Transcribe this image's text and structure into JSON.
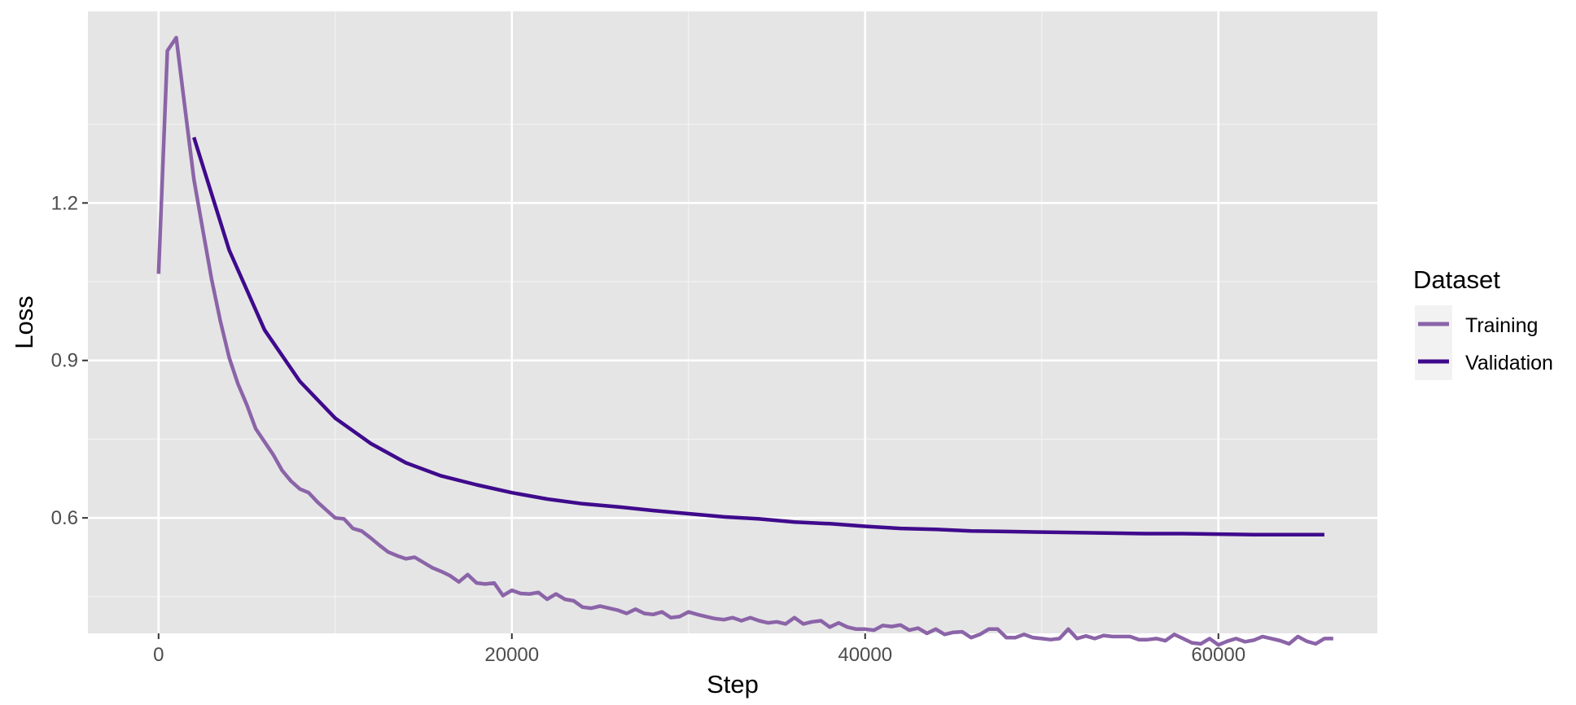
{
  "chart_data": {
    "type": "line",
    "title": "",
    "xlabel": "Step",
    "ylabel": "Loss",
    "xlim": [
      -4000,
      69000
    ],
    "ylim": [
      0.38,
      1.565
    ],
    "x_ticks": [
      0,
      20000,
      40000,
      60000
    ],
    "x_tick_labels": [
      "0",
      "20000",
      "40000",
      "60000"
    ],
    "y_ticks": [
      0.6,
      0.9,
      1.2
    ],
    "y_tick_labels": [
      "0.6",
      "0.9",
      "1.2"
    ],
    "grid": true,
    "legend": {
      "title": "Dataset",
      "position": "right"
    },
    "series": [
      {
        "name": "Training",
        "color": "#8B64A8",
        "points": [
          [
            0,
            1.065
          ],
          [
            500,
            1.49
          ],
          [
            1000,
            1.515
          ],
          [
            1500,
            1.38
          ],
          [
            2000,
            1.245
          ],
          [
            2500,
            1.15
          ],
          [
            3000,
            1.055
          ],
          [
            3500,
            0.975
          ],
          [
            4000,
            0.905
          ],
          [
            4500,
            0.855
          ],
          [
            5000,
            0.815
          ],
          [
            5500,
            0.77
          ],
          [
            6000,
            0.745
          ],
          [
            6500,
            0.72
          ],
          [
            7000,
            0.69
          ],
          [
            7500,
            0.67
          ],
          [
            8000,
            0.655
          ],
          [
            8500,
            0.648
          ],
          [
            9000,
            0.63
          ],
          [
            9500,
            0.615
          ],
          [
            10000,
            0.6
          ],
          [
            10500,
            0.598
          ],
          [
            11000,
            0.58
          ],
          [
            11500,
            0.575
          ],
          [
            12000,
            0.562
          ],
          [
            12500,
            0.548
          ],
          [
            13000,
            0.535
          ],
          [
            13500,
            0.528
          ],
          [
            14000,
            0.522
          ],
          [
            14500,
            0.525
          ],
          [
            15000,
            0.515
          ],
          [
            15500,
            0.505
          ],
          [
            16000,
            0.498
          ],
          [
            16500,
            0.49
          ],
          [
            17000,
            0.478
          ],
          [
            17500,
            0.492
          ],
          [
            18000,
            0.476
          ],
          [
            18500,
            0.474
          ],
          [
            19000,
            0.476
          ],
          [
            19500,
            0.452
          ],
          [
            20000,
            0.462
          ],
          [
            20500,
            0.456
          ],
          [
            21000,
            0.455
          ],
          [
            21500,
            0.458
          ],
          [
            22000,
            0.445
          ],
          [
            22500,
            0.455
          ],
          [
            23000,
            0.445
          ],
          [
            23500,
            0.442
          ],
          [
            24000,
            0.43
          ],
          [
            24500,
            0.428
          ],
          [
            25000,
            0.432
          ],
          [
            25500,
            0.428
          ],
          [
            26000,
            0.424
          ],
          [
            26500,
            0.418
          ],
          [
            27000,
            0.426
          ],
          [
            27500,
            0.418
          ],
          [
            28000,
            0.416
          ],
          [
            28500,
            0.421
          ],
          [
            29000,
            0.41
          ],
          [
            29500,
            0.412
          ],
          [
            30000,
            0.421
          ],
          [
            30500,
            0.416
          ],
          [
            31000,
            0.412
          ],
          [
            31500,
            0.408
          ],
          [
            32000,
            0.406
          ],
          [
            32500,
            0.41
          ],
          [
            33000,
            0.404
          ],
          [
            33500,
            0.41
          ],
          [
            34000,
            0.404
          ],
          [
            34500,
            0.4
          ],
          [
            35000,
            0.402
          ],
          [
            35500,
            0.398
          ],
          [
            36000,
            0.41
          ],
          [
            36500,
            0.398
          ],
          [
            37000,
            0.402
          ],
          [
            37500,
            0.404
          ],
          [
            38000,
            0.392
          ],
          [
            38500,
            0.4
          ],
          [
            39000,
            0.392
          ],
          [
            39500,
            0.388
          ],
          [
            40000,
            0.388
          ],
          [
            40500,
            0.386
          ],
          [
            41000,
            0.395
          ],
          [
            41500,
            0.393
          ],
          [
            42000,
            0.396
          ],
          [
            42500,
            0.386
          ],
          [
            43000,
            0.39
          ],
          [
            43500,
            0.38
          ],
          [
            44000,
            0.388
          ],
          [
            44500,
            0.378
          ],
          [
            45000,
            0.382
          ],
          [
            45500,
            0.383
          ],
          [
            46000,
            0.372
          ],
          [
            46500,
            0.378
          ],
          [
            47000,
            0.388
          ],
          [
            47500,
            0.388
          ],
          [
            48000,
            0.372
          ],
          [
            48500,
            0.372
          ],
          [
            49000,
            0.378
          ],
          [
            49500,
            0.372
          ],
          [
            50000,
            0.37
          ],
          [
            50500,
            0.368
          ],
          [
            51000,
            0.37
          ],
          [
            51500,
            0.388
          ],
          [
            52000,
            0.37
          ],
          [
            52500,
            0.375
          ],
          [
            53000,
            0.37
          ],
          [
            53500,
            0.376
          ],
          [
            54000,
            0.374
          ],
          [
            54500,
            0.374
          ],
          [
            55000,
            0.374
          ],
          [
            55500,
            0.368
          ],
          [
            56000,
            0.368
          ],
          [
            56500,
            0.37
          ],
          [
            57000,
            0.366
          ],
          [
            57500,
            0.378
          ],
          [
            58000,
            0.37
          ],
          [
            58500,
            0.362
          ],
          [
            59000,
            0.36
          ],
          [
            59500,
            0.37
          ],
          [
            60000,
            0.358
          ],
          [
            60500,
            0.365
          ],
          [
            61000,
            0.37
          ],
          [
            61500,
            0.364
          ],
          [
            62000,
            0.367
          ],
          [
            62500,
            0.374
          ],
          [
            63000,
            0.37
          ],
          [
            63500,
            0.366
          ],
          [
            64000,
            0.36
          ],
          [
            64500,
            0.374
          ],
          [
            65000,
            0.365
          ],
          [
            65500,
            0.36
          ],
          [
            66000,
            0.37
          ],
          [
            66500,
            0.37
          ]
        ]
      },
      {
        "name": "Validation",
        "color": "#3F0A8C",
        "points": [
          [
            2000,
            1.325
          ],
          [
            4000,
            1.11
          ],
          [
            6000,
            0.958
          ],
          [
            8000,
            0.86
          ],
          [
            10000,
            0.79
          ],
          [
            12000,
            0.742
          ],
          [
            14000,
            0.705
          ],
          [
            16000,
            0.68
          ],
          [
            18000,
            0.663
          ],
          [
            20000,
            0.648
          ],
          [
            22000,
            0.636
          ],
          [
            24000,
            0.627
          ],
          [
            26000,
            0.621
          ],
          [
            28000,
            0.614
          ],
          [
            30000,
            0.608
          ],
          [
            32000,
            0.602
          ],
          [
            34000,
            0.598
          ],
          [
            36000,
            0.592
          ],
          [
            38000,
            0.589
          ],
          [
            40000,
            0.584
          ],
          [
            42000,
            0.58
          ],
          [
            44000,
            0.578
          ],
          [
            46000,
            0.575
          ],
          [
            48000,
            0.574
          ],
          [
            50000,
            0.573
          ],
          [
            52000,
            0.572
          ],
          [
            54000,
            0.571
          ],
          [
            56000,
            0.57
          ],
          [
            58000,
            0.57
          ],
          [
            60000,
            0.569
          ],
          [
            62000,
            0.568
          ],
          [
            64000,
            0.568
          ],
          [
            66000,
            0.568
          ]
        ]
      }
    ]
  }
}
